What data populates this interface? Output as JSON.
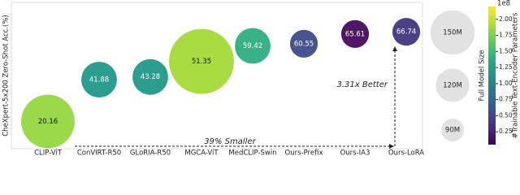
{
  "chart_data": {
    "type": "bubble",
    "y_label": "CheXpert-5x200 Zero-Shot Acc.(%)",
    "categories": [
      "CLIP-ViT",
      "ConVIRT-R50",
      "GLoRIA-R50",
      "MGCA-ViT",
      "MedCLIP-Swin",
      "Ours-Prefix",
      "Ours-IA3",
      "Ours-LoRA"
    ],
    "values": [
      20.16,
      41.88,
      43.28,
      51.35,
      59.42,
      60.55,
      65.61,
      66.74
    ],
    "sizes": [
      176,
      126,
      126,
      208,
      126,
      104,
      104,
      104
    ],
    "colors": [
      1.85,
      1.2,
      1.2,
      1.9,
      1.4,
      0.55,
      0.1,
      0.4
    ],
    "ylim": [
      6,
      82
    ],
    "annotations": [
      "3.31x Better",
      "39% Smaller"
    ],
    "size_legend": {
      "title": "Full Model Size",
      "items": [
        {
          "value": 150,
          "label": "150M"
        },
        {
          "value": 120,
          "label": "120M"
        },
        {
          "value": 90,
          "label": "90M"
        }
      ]
    },
    "colorbar": {
      "title": "#Trainable Text-Encoder Parameters",
      "offset_label": "1e8",
      "lim": [
        0.05,
        2.2
      ],
      "ticks": [
        {
          "value": 2.0,
          "label": "2.00"
        },
        {
          "value": 1.75,
          "label": "1.75"
        },
        {
          "value": 1.5,
          "label": "1.50"
        },
        {
          "value": 1.25,
          "label": "1.25"
        },
        {
          "value": 1.0,
          "label": "1.00"
        },
        {
          "value": 0.75,
          "label": "0.75"
        },
        {
          "value": 0.5,
          "label": "0.50"
        },
        {
          "value": 0.25,
          "label": "0.25"
        }
      ]
    }
  }
}
